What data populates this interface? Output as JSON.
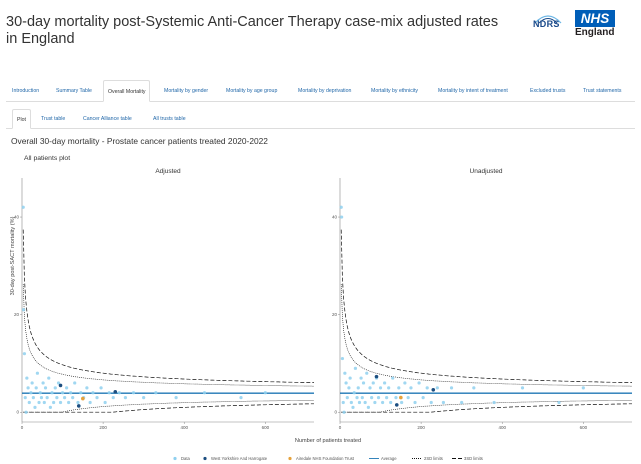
{
  "header": {
    "title": "30-day mortality post-Systemic Anti-Cancer Therapy case-mix adjusted rates in England",
    "logo_ndrs": "NDRS",
    "logo_nhs": "NHS",
    "logo_england": "England"
  },
  "tabs": [
    {
      "label": "Introduction"
    },
    {
      "label": "Summary Table"
    },
    {
      "label": "Overall Mortality",
      "active": true
    },
    {
      "label": "Mortality by gender"
    },
    {
      "label": "Mortality by age group"
    },
    {
      "label": "Mortality by deprivation"
    },
    {
      "label": "Mortality by ethnicity"
    },
    {
      "label": "Mortality by intent of treatment"
    },
    {
      "label": "Excluded trusts"
    },
    {
      "label": "Trust statements"
    }
  ],
  "subtabs": [
    {
      "label": "Plot",
      "active": true
    },
    {
      "label": "Trust table"
    },
    {
      "label": "Cancer Alliance table"
    },
    {
      "label": "All trusts table"
    }
  ],
  "content": {
    "subtitle": "Overall 30-day mortality - Prostate cancer patients treated 2020-2022",
    "plot_heading": "All patients plot"
  },
  "chart_data": {
    "type": "scatter",
    "panels": [
      "Adjusted",
      "Unadjusted"
    ],
    "xlabel": "Number of patients treated",
    "ylabel": "30-day post-SACT mortality (%)",
    "x_ticks": [
      0,
      200,
      400,
      600
    ],
    "y_ticks": [
      0,
      20,
      40
    ],
    "xlim": [
      0,
      720
    ],
    "ylim": [
      -2,
      48
    ],
    "average": {
      "Adjusted": 3.9,
      "Unadjusted": 3.9
    },
    "legend": [
      "Data",
      "West Yorkshire And Harrogate",
      "Airedale NHS Foundation Trust",
      "Average",
      "2SD limits",
      "3SD limits"
    ],
    "colors": {
      "data": "#8fd0ef",
      "highlight_region": "#1c4e80",
      "highlight_trust": "#e6a23c",
      "average": "#1f77b4",
      "limits": "#000000"
    },
    "series": {
      "Adjusted": {
        "points": [
          [
            3,
            42
          ],
          [
            4,
            21
          ],
          [
            6,
            12
          ],
          [
            8,
            3
          ],
          [
            10,
            0
          ],
          [
            12,
            7
          ],
          [
            15,
            5
          ],
          [
            18,
            2
          ],
          [
            22,
            4
          ],
          [
            25,
            6
          ],
          [
            28,
            3
          ],
          [
            32,
            1
          ],
          [
            35,
            5
          ],
          [
            38,
            8
          ],
          [
            42,
            2
          ],
          [
            45,
            4
          ],
          [
            48,
            3
          ],
          [
            52,
            6
          ],
          [
            55,
            2
          ],
          [
            58,
            5
          ],
          [
            62,
            3
          ],
          [
            66,
            7
          ],
          [
            70,
            1
          ],
          [
            74,
            4
          ],
          [
            78,
            2
          ],
          [
            82,
            5
          ],
          [
            86,
            3
          ],
          [
            90,
            6
          ],
          [
            95,
            2
          ],
          [
            100,
            4
          ],
          [
            105,
            3
          ],
          [
            110,
            5
          ],
          [
            115,
            2
          ],
          [
            120,
            4
          ],
          [
            125,
            3
          ],
          [
            130,
            6
          ],
          [
            138,
            2
          ],
          [
            145,
            4
          ],
          [
            152,
            3
          ],
          [
            160,
            5
          ],
          [
            168,
            2
          ],
          [
            175,
            4
          ],
          [
            185,
            3
          ],
          [
            195,
            5
          ],
          [
            205,
            2
          ],
          [
            215,
            4
          ],
          [
            225,
            3
          ],
          [
            240,
            4
          ],
          [
            255,
            3
          ],
          [
            275,
            4
          ],
          [
            300,
            3
          ],
          [
            330,
            4
          ],
          [
            380,
            3
          ],
          [
            450,
            4
          ],
          [
            540,
            3
          ],
          [
            600,
            4
          ]
        ],
        "highlight_region": [
          [
            95,
            5.5
          ],
          [
            140,
            1.3
          ],
          [
            230,
            4.2
          ]
        ],
        "highlight_trust": [
          [
            150,
            2.8
          ]
        ]
      },
      "Unadjusted": {
        "points": [
          [
            3,
            42
          ],
          [
            4,
            40
          ],
          [
            6,
            11
          ],
          [
            8,
            2
          ],
          [
            10,
            0
          ],
          [
            12,
            8
          ],
          [
            15,
            6
          ],
          [
            18,
            3
          ],
          [
            22,
            5
          ],
          [
            25,
            7
          ],
          [
            28,
            2
          ],
          [
            32,
            1
          ],
          [
            35,
            4
          ],
          [
            38,
            9
          ],
          [
            42,
            3
          ],
          [
            45,
            5
          ],
          [
            48,
            2
          ],
          [
            52,
            7
          ],
          [
            55,
            3
          ],
          [
            58,
            6
          ],
          [
            62,
            2
          ],
          [
            66,
            8
          ],
          [
            70,
            1
          ],
          [
            74,
            5
          ],
          [
            78,
            3
          ],
          [
            82,
            6
          ],
          [
            86,
            2
          ],
          [
            90,
            7
          ],
          [
            95,
            3
          ],
          [
            100,
            5
          ],
          [
            105,
            2
          ],
          [
            110,
            6
          ],
          [
            115,
            3
          ],
          [
            120,
            5
          ],
          [
            125,
            2
          ],
          [
            130,
            7
          ],
          [
            138,
            3
          ],
          [
            145,
            5
          ],
          [
            152,
            2
          ],
          [
            160,
            6
          ],
          [
            168,
            3
          ],
          [
            175,
            5
          ],
          [
            185,
            2
          ],
          [
            195,
            6
          ],
          [
            205,
            3
          ],
          [
            215,
            5
          ],
          [
            225,
            2
          ],
          [
            240,
            5
          ],
          [
            255,
            2
          ],
          [
            275,
            5
          ],
          [
            300,
            2
          ],
          [
            330,
            5
          ],
          [
            380,
            2
          ],
          [
            450,
            5
          ],
          [
            540,
            2
          ],
          [
            600,
            5
          ]
        ],
        "highlight_region": [
          [
            90,
            7.3
          ],
          [
            140,
            1.5
          ],
          [
            230,
            4.6
          ]
        ],
        "highlight_trust": [
          [
            150,
            3.0
          ]
        ]
      }
    }
  }
}
